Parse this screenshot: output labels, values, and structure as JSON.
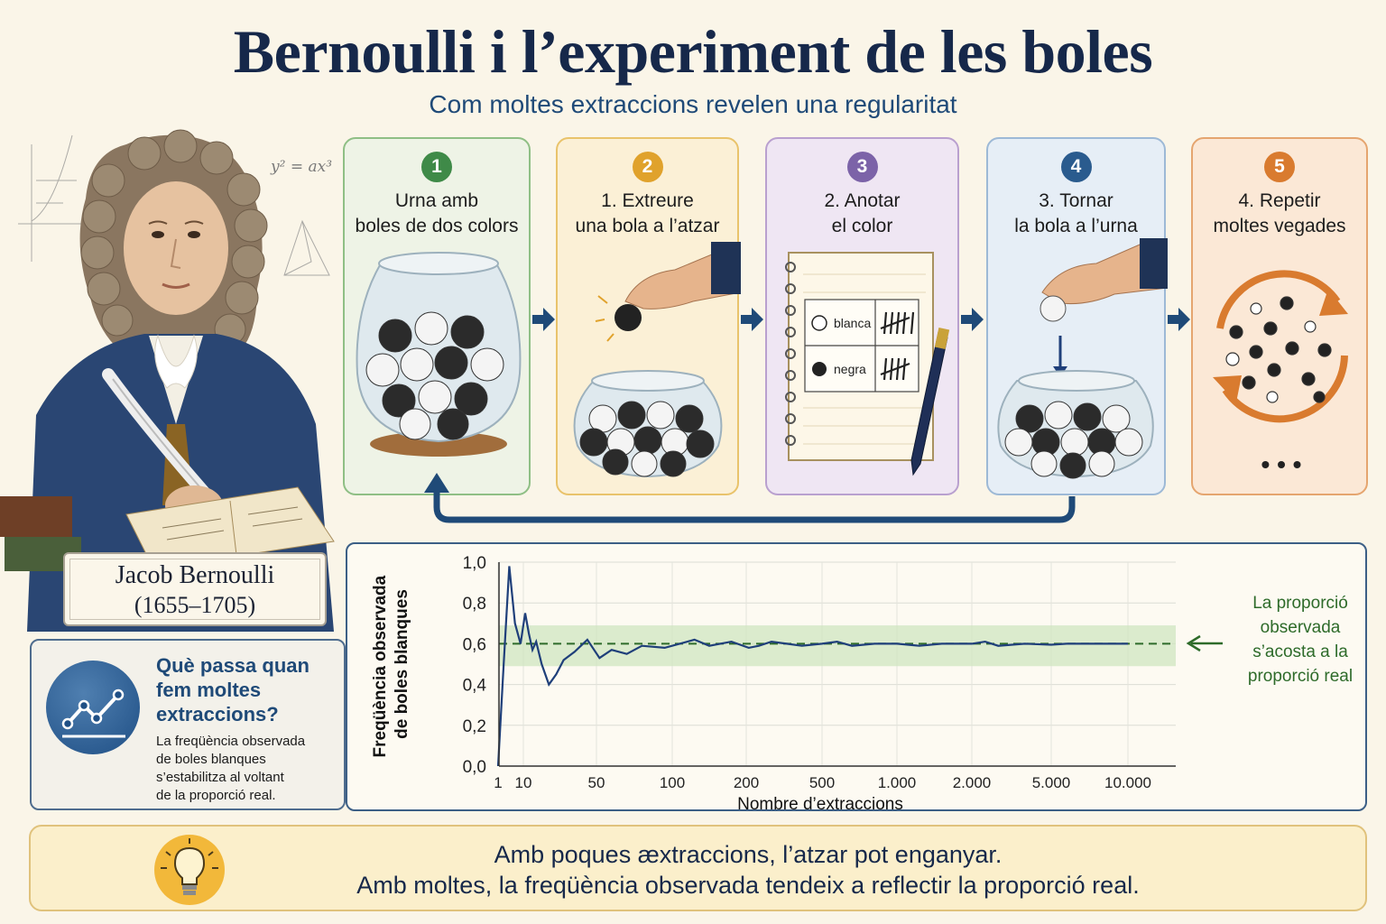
{
  "header": {
    "title": "Bernoulli i l’experiment de les boles",
    "subtitle": "Com moltes extraccions revelen una regularitat"
  },
  "portrait": {
    "name": "Jacob Bernoulli",
    "years": "(1655–1705)",
    "formula": "y² = ax³"
  },
  "steps": [
    {
      "number": "1",
      "line1": "Urna amb",
      "line2": "boles de dos colors",
      "color": "#3f8a48"
    },
    {
      "number": "2",
      "line1": "1. Extreure",
      "line2": "una bola a l’atzar",
      "color": "#e0a22c"
    },
    {
      "number": "3",
      "line1": "2. Anotar",
      "line2": "el color",
      "color": "#7c63a8"
    },
    {
      "number": "4",
      "line1": "3. Tornar",
      "line2": "la bola a l’urna",
      "color": "#2a5b8e"
    },
    {
      "number": "5",
      "line1": "4. Repetir",
      "line2": "moltes vegades",
      "color": "#d97b2f"
    }
  ],
  "tally": {
    "white_label": "blanca",
    "black_label": "negra"
  },
  "repeat_dots": "• • •",
  "info": {
    "title_lines": [
      "Què passa quan",
      "fem moltes",
      "extraccions?"
    ],
    "text_lines": [
      "La freqüència observada",
      "de boles blanques",
      "s’estabilitza al voltant",
      "de la proporció real."
    ]
  },
  "chart_data": {
    "type": "line",
    "xlabel": "Nombre d’extraccions",
    "ylabel_lines": [
      "Freqüència observada",
      "de boles blanques"
    ],
    "x_ticks": [
      "1",
      "10",
      "50",
      "100",
      "200",
      "500",
      "1.000",
      "2.000",
      "5.000",
      "10.000"
    ],
    "y_ticks": [
      "0,0",
      "0,2",
      "0,4",
      "0,6",
      "0,8",
      "1,0"
    ],
    "ylim": [
      0,
      1
    ],
    "reference_value": 0.6,
    "band": [
      0.49,
      0.69
    ],
    "series": [
      {
        "x": [
          1,
          3,
          5,
          7,
          9,
          11,
          13,
          15,
          17,
          20,
          24,
          28,
          32,
          38,
          45,
          52,
          60,
          70,
          80,
          95,
          110,
          130,
          150,
          180,
          210,
          250,
          300,
          360,
          420,
          500,
          600,
          700,
          850,
          1000,
          1300,
          1600,
          2000,
          2500,
          3000,
          4000,
          5000,
          6000,
          7000,
          8500,
          10000
        ],
        "y": [
          0.0,
          0.5,
          0.98,
          0.7,
          0.6,
          0.75,
          0.65,
          0.57,
          0.61,
          0.5,
          0.4,
          0.45,
          0.52,
          0.56,
          0.62,
          0.53,
          0.57,
          0.55,
          0.59,
          0.58,
          0.6,
          0.62,
          0.59,
          0.61,
          0.58,
          0.59,
          0.61,
          0.6,
          0.59,
          0.6,
          0.61,
          0.59,
          0.6,
          0.6,
          0.59,
          0.6,
          0.6,
          0.61,
          0.59,
          0.6,
          0.595,
          0.6,
          0.6,
          0.6,
          0.6
        ],
        "color": "#1f3f7a"
      }
    ],
    "reference_color": "#2e6b2a",
    "band_color": "#cfe6c0"
  },
  "chart_note": {
    "lines": [
      "La proporció",
      "observada",
      "s’acosta a la",
      "proporció real"
    ]
  },
  "bottom": {
    "line1": "Amb poques æxtraccions, l’atzar pot enganyar.",
    "line2": "Amb moltes, la freqüència observada tendeix a reflectir la proporció real."
  }
}
